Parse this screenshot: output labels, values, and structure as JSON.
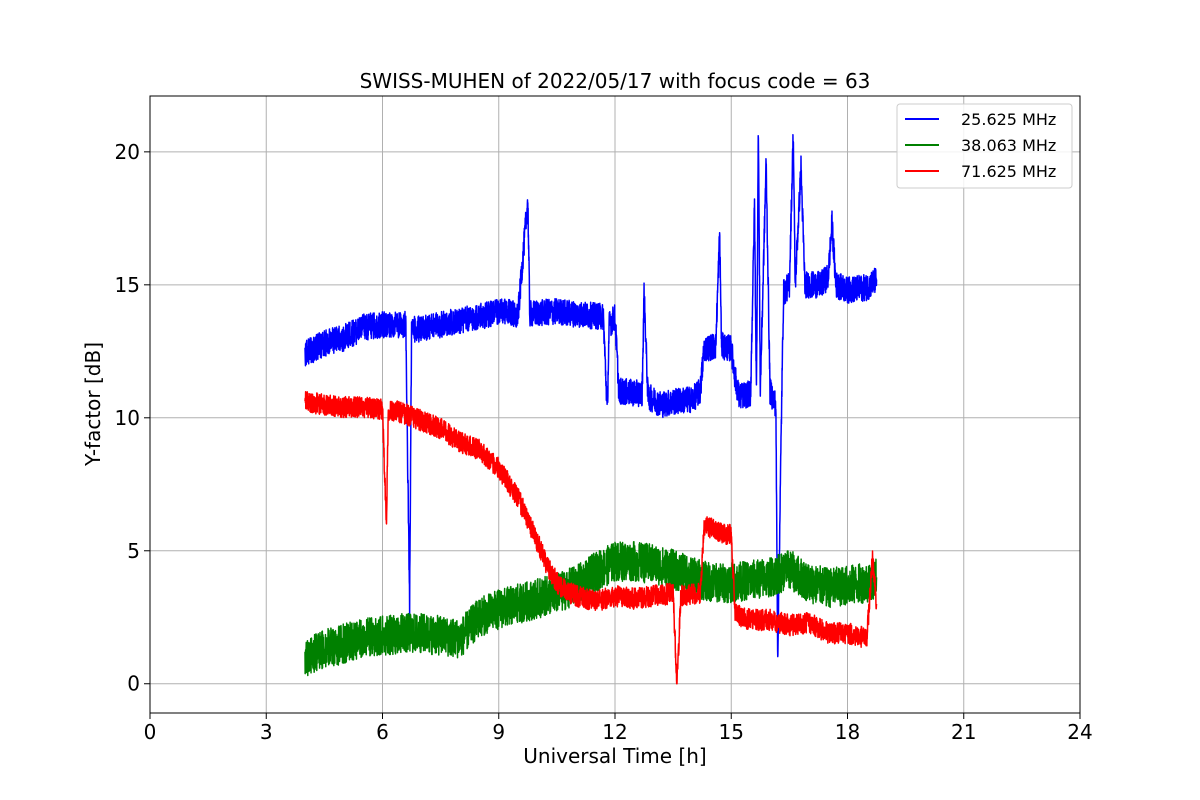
{
  "chart_data": {
    "type": "line",
    "title": "SWISS-MUHEN of 2022/05/17 with focus code = 63",
    "xlabel": "Universal Time [h]",
    "ylabel": "Y-factor [dB]",
    "xlim": [
      0,
      24
    ],
    "ylim": [
      -1.1,
      22.1
    ],
    "xticks": [
      0,
      3,
      6,
      9,
      12,
      15,
      18,
      21,
      24
    ],
    "yticks": [
      0,
      5,
      10,
      15,
      20
    ],
    "xtick_labels": [
      "0",
      "3",
      "6",
      "9",
      "12",
      "15",
      "18",
      "21",
      "24"
    ],
    "ytick_labels": [
      "0",
      "5",
      "10",
      "15",
      "20"
    ],
    "grid": true,
    "legend_position": "top-right",
    "series": [
      {
        "name": "25.625 MHz",
        "color": "#0000ff",
        "noise": 0.5,
        "points": [
          [
            4.0,
            12.4
          ],
          [
            4.5,
            12.8
          ],
          [
            5.0,
            13.0
          ],
          [
            5.5,
            13.4
          ],
          [
            6.0,
            13.5
          ],
          [
            6.6,
            13.5
          ],
          [
            6.7,
            3.0
          ],
          [
            6.75,
            13.3
          ],
          [
            7.5,
            13.5
          ],
          [
            8.5,
            13.8
          ],
          [
            9.0,
            14.0
          ],
          [
            9.5,
            13.9
          ],
          [
            9.75,
            18.2
          ],
          [
            9.8,
            13.9
          ],
          [
            10.5,
            14.0
          ],
          [
            11.0,
            13.9
          ],
          [
            11.7,
            13.8
          ],
          [
            11.8,
            10.2
          ],
          [
            11.85,
            13.5
          ],
          [
            12.0,
            13.8
          ],
          [
            12.1,
            11.0
          ],
          [
            12.7,
            10.9
          ],
          [
            12.75,
            14.7
          ],
          [
            12.85,
            10.8
          ],
          [
            13.2,
            10.5
          ],
          [
            13.5,
            10.6
          ],
          [
            14.0,
            10.7
          ],
          [
            14.2,
            11.0
          ],
          [
            14.3,
            12.6
          ],
          [
            14.6,
            12.7
          ],
          [
            14.7,
            16.9
          ],
          [
            14.75,
            12.7
          ],
          [
            15.0,
            12.6
          ],
          [
            15.1,
            11.5
          ],
          [
            15.2,
            10.8
          ],
          [
            15.5,
            10.9
          ],
          [
            15.6,
            18.0
          ],
          [
            15.65,
            10.9
          ],
          [
            15.7,
            21.0
          ],
          [
            15.75,
            11.0
          ],
          [
            15.9,
            19.6
          ],
          [
            16.0,
            11.0
          ],
          [
            16.15,
            10.5
          ],
          [
            16.2,
            1.0
          ],
          [
            16.3,
            10.5
          ],
          [
            16.35,
            14.7
          ],
          [
            16.5,
            15.0
          ],
          [
            16.6,
            20.7
          ],
          [
            16.65,
            15.0
          ],
          [
            16.8,
            19.4
          ],
          [
            16.9,
            15.0
          ],
          [
            17.3,
            15.0
          ],
          [
            17.5,
            15.3
          ],
          [
            17.6,
            17.3
          ],
          [
            17.7,
            15.0
          ],
          [
            18.0,
            14.8
          ],
          [
            18.5,
            14.9
          ],
          [
            18.75,
            15.2
          ]
        ]
      },
      {
        "name": "38.063 MHz",
        "color": "#008000",
        "noise": 0.75,
        "points": [
          [
            4.0,
            1.0
          ],
          [
            4.5,
            1.3
          ],
          [
            5.0,
            1.5
          ],
          [
            5.5,
            1.7
          ],
          [
            6.0,
            1.8
          ],
          [
            6.5,
            1.9
          ],
          [
            7.0,
            1.9
          ],
          [
            7.5,
            1.8
          ],
          [
            8.0,
            1.7
          ],
          [
            8.5,
            2.5
          ],
          [
            9.0,
            2.8
          ],
          [
            9.5,
            3.0
          ],
          [
            10.0,
            3.2
          ],
          [
            10.5,
            3.4
          ],
          [
            11.0,
            3.7
          ],
          [
            11.5,
            4.2
          ],
          [
            12.0,
            4.6
          ],
          [
            12.5,
            4.6
          ],
          [
            13.0,
            4.5
          ],
          [
            13.5,
            4.3
          ],
          [
            14.0,
            4.0
          ],
          [
            14.5,
            3.8
          ],
          [
            15.0,
            3.8
          ],
          [
            15.5,
            3.9
          ],
          [
            16.0,
            4.0
          ],
          [
            16.5,
            4.3
          ],
          [
            17.0,
            3.8
          ],
          [
            17.5,
            3.6
          ],
          [
            18.0,
            3.7
          ],
          [
            18.5,
            3.8
          ],
          [
            18.75,
            4.0
          ]
        ]
      },
      {
        "name": "71.625 MHz",
        "color": "#ff0000",
        "noise": 0.4,
        "points": [
          [
            4.0,
            10.6
          ],
          [
            4.5,
            10.5
          ],
          [
            5.0,
            10.4
          ],
          [
            5.5,
            10.4
          ],
          [
            6.0,
            10.3
          ],
          [
            6.1,
            6.0
          ],
          [
            6.15,
            10.3
          ],
          [
            6.5,
            10.2
          ],
          [
            7.0,
            9.9
          ],
          [
            7.5,
            9.6
          ],
          [
            8.0,
            9.1
          ],
          [
            8.5,
            8.8
          ],
          [
            9.0,
            8.1
          ],
          [
            9.5,
            7.0
          ],
          [
            10.0,
            5.3
          ],
          [
            10.3,
            4.3
          ],
          [
            10.6,
            3.6
          ],
          [
            11.0,
            3.3
          ],
          [
            11.5,
            3.1
          ],
          [
            12.0,
            3.3
          ],
          [
            12.5,
            3.2
          ],
          [
            13.0,
            3.3
          ],
          [
            13.5,
            3.4
          ],
          [
            13.6,
            0.0
          ],
          [
            13.7,
            3.3
          ],
          [
            14.0,
            3.4
          ],
          [
            14.2,
            3.4
          ],
          [
            14.3,
            6.0
          ],
          [
            14.7,
            5.7
          ],
          [
            15.0,
            5.6
          ],
          [
            15.1,
            2.6
          ],
          [
            15.5,
            2.4
          ],
          [
            16.0,
            2.4
          ],
          [
            16.5,
            2.2
          ],
          [
            17.0,
            2.3
          ],
          [
            17.5,
            1.9
          ],
          [
            18.0,
            1.9
          ],
          [
            18.5,
            1.7
          ],
          [
            18.65,
            4.8
          ],
          [
            18.75,
            3.0
          ]
        ]
      }
    ]
  }
}
